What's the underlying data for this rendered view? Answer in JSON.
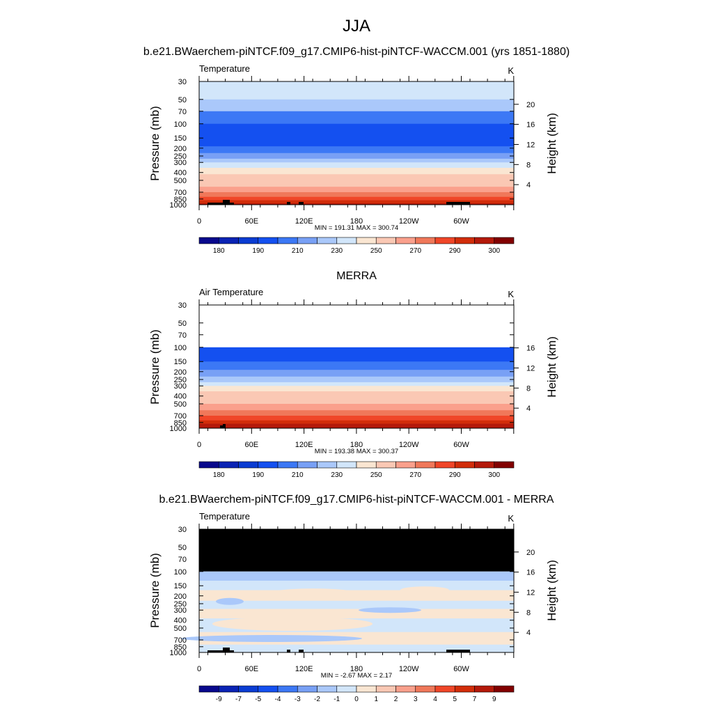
{
  "figure": {
    "title": "JJA"
  },
  "colors": {
    "temperature_palette": [
      "#08088c",
      "#0a23b4",
      "#0a3cd2",
      "#1450f0",
      "#3c78f5",
      "#78a0f5",
      "#aac8fa",
      "#d2e6fa",
      "#fae6d2",
      "#fac8b4",
      "#faa08c",
      "#f0785a",
      "#f04628",
      "#d22d0a",
      "#b4190a",
      "#820000"
    ],
    "difference_palette": [
      "#08088c",
      "#0a23b4",
      "#0a3cd2",
      "#1450f0",
      "#3c78f5",
      "#78a0f5",
      "#aac8fa",
      "#d2e6fa",
      "#fae6d2",
      "#fac8b4",
      "#faa08c",
      "#f0785a",
      "#f04628",
      "#d22d0a",
      "#b4190a",
      "#820000"
    ],
    "missing_fill": "#000000",
    "terrain": "#000000"
  },
  "chart_data": [
    {
      "type": "heatmap",
      "case_title": "b.e21.BWaerchem-piNTCF.f09_g17.CMIP6-hist-piNTCF-WACCM.001 (yrs 1851-1880)",
      "left_label": "Temperature",
      "right_label": "K",
      "ylabel": "Pressure (mb)",
      "ylabel_right": "Height (km)",
      "x_ticks": [
        "0",
        "60E",
        "120E",
        "180",
        "120W",
        "60W"
      ],
      "y_ticks": [
        "30",
        "50",
        "70",
        "100",
        "150",
        "200",
        "250",
        "300",
        "400",
        "500",
        "700",
        "850",
        "1000"
      ],
      "height_ticks": [
        "4",
        "8",
        "12",
        "16",
        "20"
      ],
      "stats_text": "MIN = 191.31  MAX = 300.74",
      "min": 191.31,
      "max": 300.74,
      "colorbar_labels": [
        "180",
        "190",
        "210",
        "230",
        "250",
        "270",
        "290",
        "300"
      ],
      "band_levels": [
        7,
        6,
        4,
        3,
        3,
        4,
        5,
        6,
        7,
        8,
        9,
        9,
        10,
        11,
        12,
        13,
        14
      ],
      "pressure_breaks": [
        30,
        50,
        70,
        100,
        150,
        190,
        230,
        270,
        300,
        350,
        420,
        500,
        600,
        700,
        800,
        880,
        960,
        1000
      ],
      "data_top_pressure": 30,
      "missing_above_pressure": null,
      "terrain": true
    },
    {
      "type": "heatmap",
      "case_title": "MERRA",
      "left_label": "Air Temperature",
      "right_label": "K",
      "ylabel": "Pressure (mb)",
      "ylabel_right": "Height (km)",
      "x_ticks": [
        "0",
        "60E",
        "120E",
        "180",
        "120W",
        "60W"
      ],
      "y_ticks": [
        "30",
        "50",
        "70",
        "100",
        "150",
        "200",
        "250",
        "300",
        "400",
        "500",
        "700",
        "850",
        "1000"
      ],
      "height_ticks": [
        "4",
        "8",
        "12",
        "16"
      ],
      "stats_text": "MIN = 193.38  MAX = 300.37",
      "min": 193.38,
      "max": 300.37,
      "colorbar_labels": [
        "180",
        "190",
        "210",
        "230",
        "250",
        "270",
        "290",
        "300"
      ],
      "band_levels": [
        3,
        4,
        5,
        6,
        7,
        8,
        9,
        9,
        10,
        11,
        12,
        13,
        14
      ],
      "pressure_breaks": [
        100,
        150,
        190,
        230,
        270,
        300,
        350,
        420,
        500,
        600,
        700,
        800,
        880,
        1000
      ],
      "data_top_pressure": 100,
      "missing_above_pressure": null,
      "terrain": true
    },
    {
      "type": "heatmap",
      "case_title": "b.e21.BWaerchem-piNTCF.f09_g17.CMIP6-hist-piNTCF-WACCM.001 - MERRA",
      "left_label": "Temperature",
      "right_label": "K",
      "ylabel": "Pressure (mb)",
      "ylabel_right": "Height (km)",
      "x_ticks": [
        "0",
        "60E",
        "120E",
        "180",
        "120W",
        "60W"
      ],
      "y_ticks": [
        "30",
        "50",
        "70",
        "100",
        "150",
        "200",
        "250",
        "300",
        "400",
        "500",
        "700",
        "850",
        "1000"
      ],
      "height_ticks": [
        "4",
        "8",
        "12",
        "16",
        "20"
      ],
      "stats_text": "MIN =  -2.67  MAX =   2.17",
      "min": -2.67,
      "max": 2.17,
      "colorbar_labels": [
        "-9",
        "-7",
        "-5",
        "-4",
        "-3",
        "-2",
        "-1",
        "0",
        "1",
        "2",
        "3",
        "4",
        "5",
        "7",
        "9"
      ],
      "band_levels": [
        6,
        7,
        8,
        7,
        8,
        7,
        8,
        7
      ],
      "pressure_breaks": [
        100,
        130,
        170,
        230,
        290,
        380,
        560,
        800,
        1000
      ],
      "data_top_pressure": 100,
      "missing_above_pressure": 100,
      "terrain": true
    }
  ]
}
